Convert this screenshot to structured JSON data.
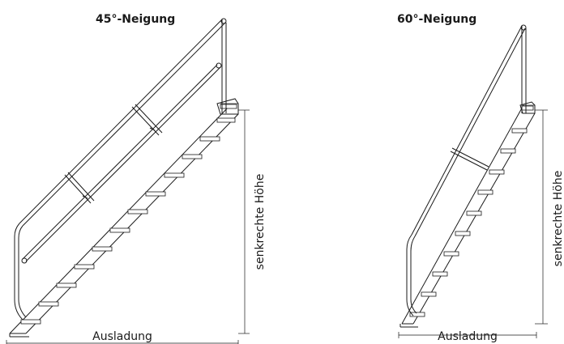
{
  "diagrams": [
    {
      "title": "45°-Neigung",
      "width_label": "Ausladung",
      "height_label": "senkrechte Höhe"
    },
    {
      "title": "60°-Neigung",
      "width_label": "Ausladung",
      "height_label": "senkrechte Höhe"
    }
  ]
}
